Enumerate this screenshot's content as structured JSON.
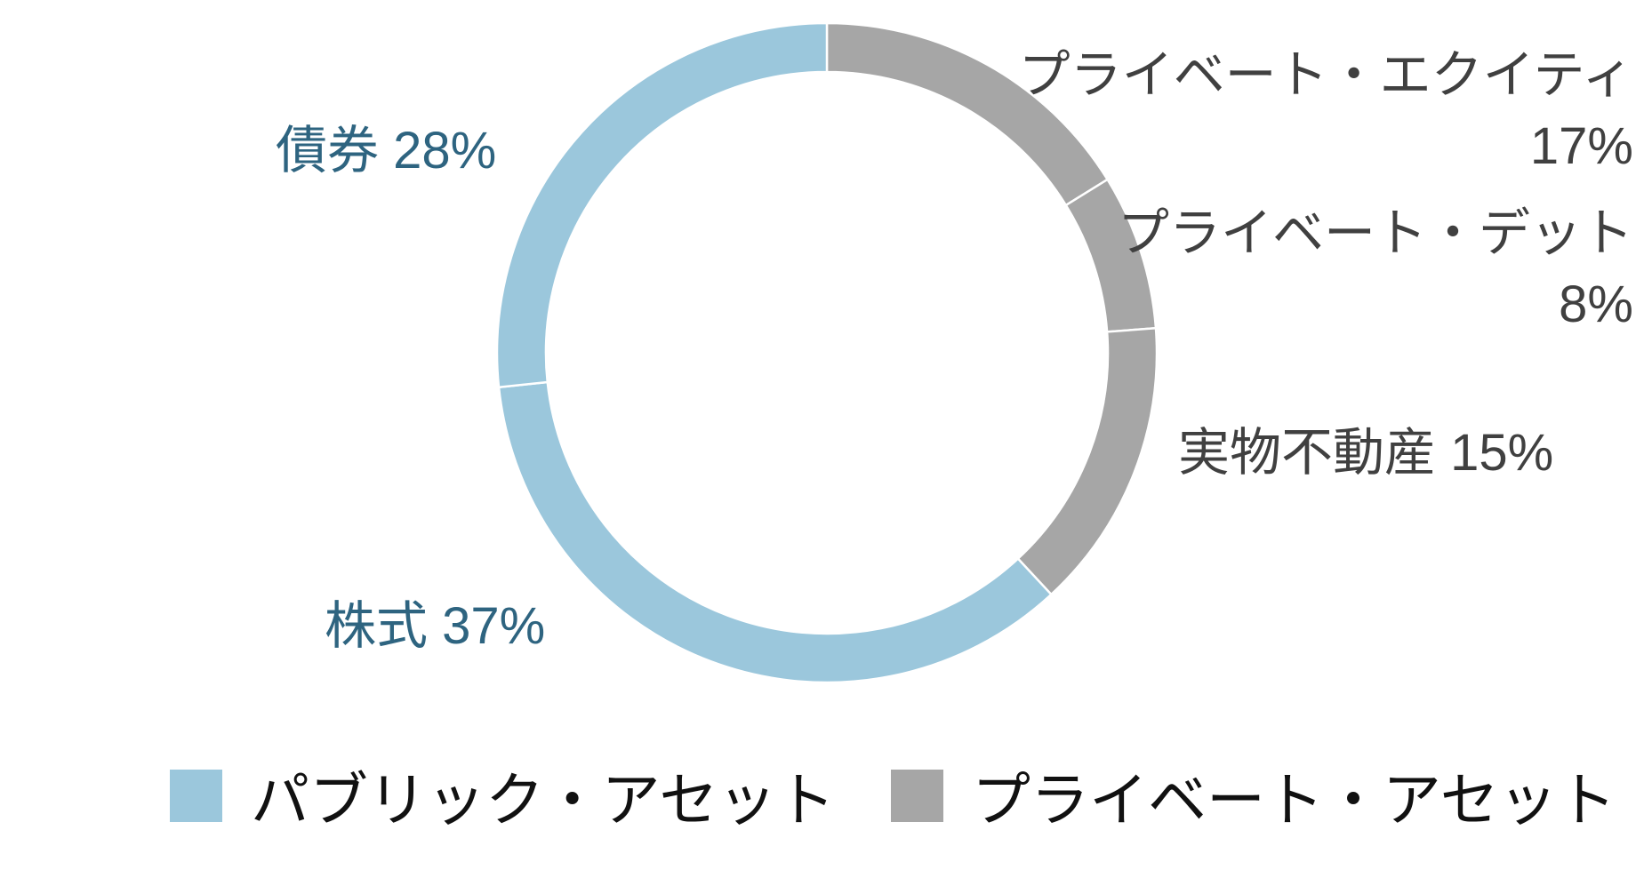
{
  "chart_data": {
    "type": "pie",
    "variant": "donut",
    "slices": [
      {
        "label": "プライベート・エクイティ",
        "value": 17,
        "display": "17%",
        "group": "private"
      },
      {
        "label": "プライベート・デット",
        "value": 8,
        "display": "8%",
        "group": "private"
      },
      {
        "label": "実物不動産",
        "value": 15,
        "display": "15%",
        "group": "private"
      },
      {
        "label": "株式",
        "value": 37,
        "display": "37%",
        "group": "public"
      },
      {
        "label": "債券",
        "value": 28,
        "display": "28%",
        "group": "public"
      }
    ],
    "start_angle": "top, clockwise",
    "legend": {
      "placement": "bottom",
      "entries": [
        {
          "key": "public",
          "name": "パブリック・アセット",
          "color": "#9BC7DC"
        },
        {
          "key": "private",
          "name": "プライベート・アセット",
          "color": "#A6A6A6"
        }
      ]
    },
    "colors": {
      "public": "#9BC7DC",
      "private": "#A6A6A6",
      "public_label": "#2E6480",
      "private_label": "#404040"
    }
  }
}
